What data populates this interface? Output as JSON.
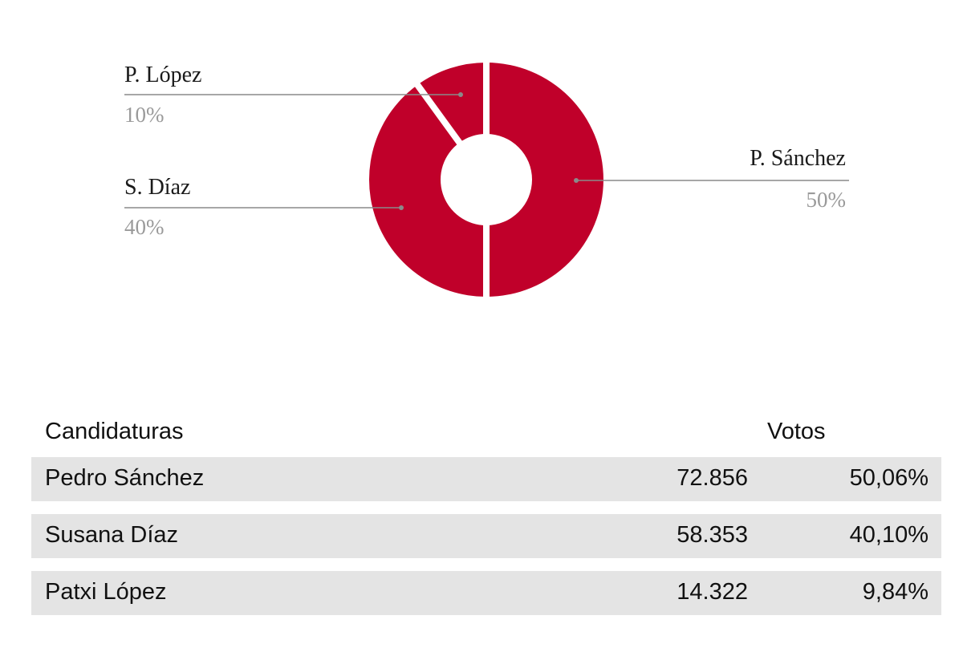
{
  "chart_data": {
    "type": "pie",
    "categories": [
      "P. Sánchez",
      "S. Díaz",
      "P. López"
    ],
    "values": [
      50,
      40,
      10
    ],
    "labels": [
      "50%",
      "40%",
      "10%"
    ],
    "color": "#c0002a",
    "legend": "none"
  },
  "table": {
    "header": {
      "name": "Candidaturas",
      "votes": "Votos"
    },
    "rows": [
      {
        "name": "Pedro Sánchez",
        "votes": "72.856",
        "pct": "50,06%"
      },
      {
        "name": "Susana Díaz",
        "votes": "58.353",
        "pct": "40,10%"
      },
      {
        "name": "Patxi López",
        "votes": "14.322",
        "pct": "9,84%"
      }
    ]
  }
}
